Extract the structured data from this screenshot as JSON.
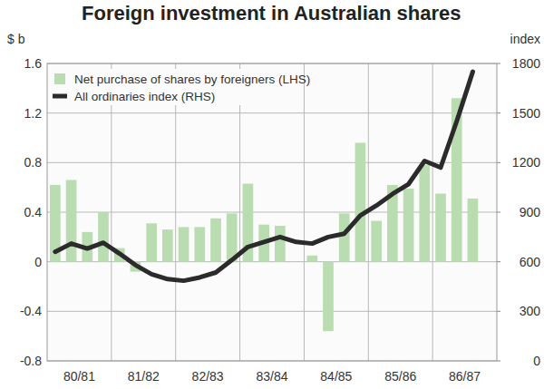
{
  "chart_data": {
    "type": "bar",
    "title": "Foreign investment in Australian shares",
    "y_label": "$ b",
    "y2_label": "index",
    "categories": [
      null,
      "80/81",
      null,
      null,
      null,
      "81/82",
      null,
      null,
      null,
      "82/83",
      null,
      null,
      null,
      "83/84",
      null,
      null,
      null,
      "84/85",
      null,
      null,
      null,
      "85/86",
      null,
      null,
      null,
      "86/87",
      null,
      null
    ],
    "series": [
      {
        "name": "Net purchase of shares by foreigners (LHS)",
        "type": "bar",
        "color": "#b9ddb1",
        "values": [
          0.62,
          0.66,
          0.24,
          0.4,
          0.11,
          -0.08,
          0.31,
          0.26,
          0.28,
          0.28,
          0.35,
          0.39,
          0.63,
          0.3,
          0.29,
          0.0,
          0.05,
          -0.56,
          0.39,
          0.96,
          0.33,
          0.62,
          0.59,
          0.78,
          0.55,
          1.32,
          0.51,
          null
        ]
      },
      {
        "name": "All ordinaries index (RHS)",
        "type": "line",
        "axis": "y2",
        "color": "#2b2b2b",
        "values": [
          660,
          710,
          680,
          715,
          650,
          580,
          525,
          495,
          485,
          505,
          535,
          610,
          690,
          720,
          750,
          720,
          710,
          750,
          770,
          880,
          940,
          1010,
          1070,
          1210,
          1170,
          1450,
          1750,
          null
        ]
      }
    ],
    "ylim": [
      -0.8,
      1.6
    ],
    "yticks": [
      -0.8,
      -0.4,
      0,
      0.4,
      0.8,
      1.2,
      1.6
    ],
    "y2lim": [
      0,
      1800
    ],
    "y2ticks": [
      0,
      300,
      600,
      900,
      1200,
      1500,
      1800
    ],
    "grid": true,
    "legend": "top-left"
  }
}
